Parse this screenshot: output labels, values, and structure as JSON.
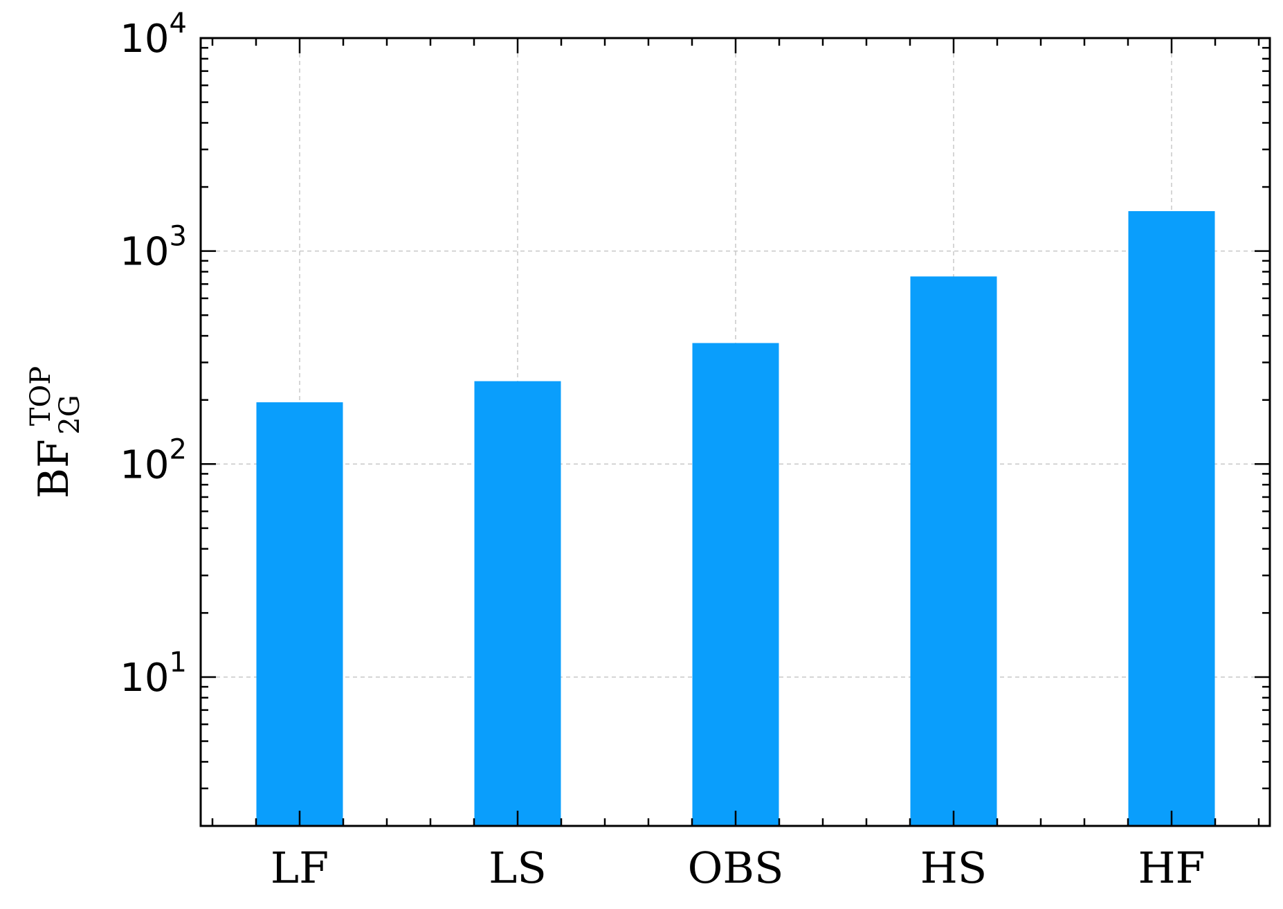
{
  "chart_data": {
    "type": "bar",
    "categories": [
      "LF",
      "LS",
      "OBS",
      "HS",
      "HF"
    ],
    "values": [
      195,
      245,
      370,
      760,
      1540
    ],
    "title": "",
    "xlabel": "",
    "ylabel": {
      "base": "BF",
      "superscript": "TOP",
      "subscript": "2G"
    },
    "yscale": "log",
    "ylim": [
      2,
      10000
    ],
    "yticks": [
      {
        "value": 10,
        "base": "10",
        "exp": "1"
      },
      {
        "value": 100,
        "base": "10",
        "exp": "2"
      },
      {
        "value": 1000,
        "base": "10",
        "exp": "3"
      },
      {
        "value": 10000,
        "base": "10",
        "exp": "4"
      }
    ],
    "grid": true,
    "bar_color": "#0a9efc",
    "grid_color": "#c8c8c8",
    "axis_color": "#000000"
  }
}
